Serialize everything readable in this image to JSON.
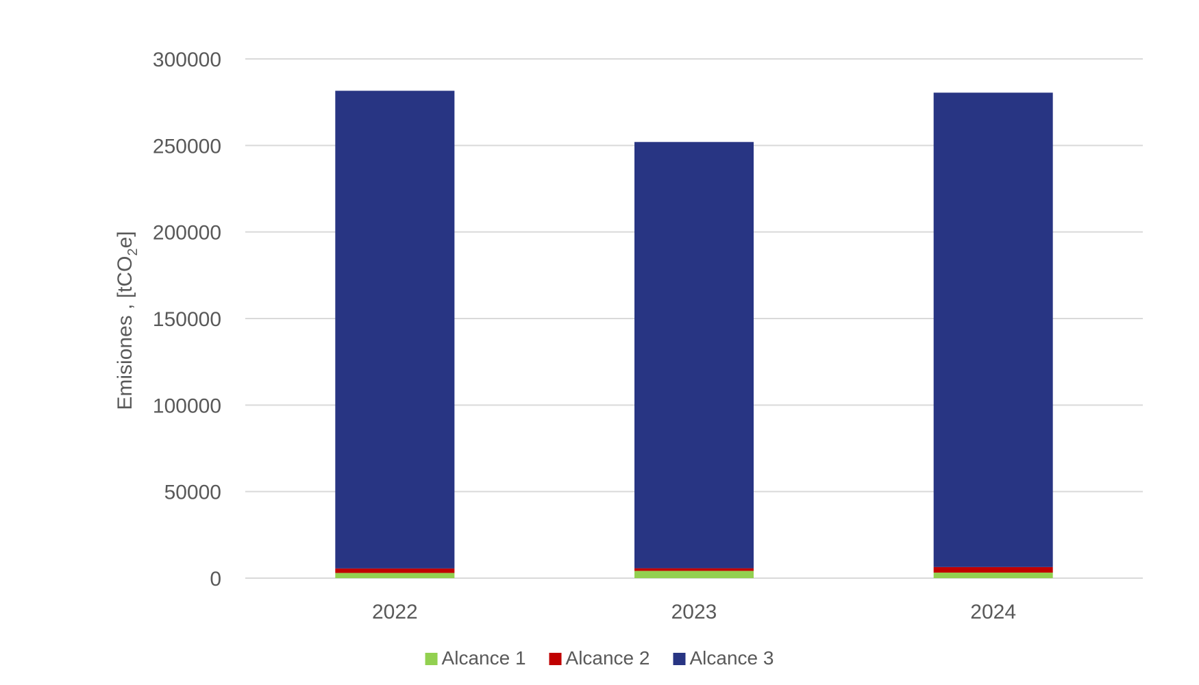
{
  "chart_data": {
    "type": "bar",
    "stacked": true,
    "categories": [
      "2022",
      "2023",
      "2024"
    ],
    "series": [
      {
        "name": "Alcance 1",
        "values": [
          3000,
          4200,
          3200
        ],
        "color": "#92d050"
      },
      {
        "name": "Alcance 2",
        "values": [
          2600,
          1500,
          3200
        ],
        "color": "#c00000"
      },
      {
        "name": "Alcance 3",
        "values": [
          276000,
          246300,
          274100
        ],
        "color": "#283583"
      }
    ],
    "ylabel": {
      "prefix": "Emisiones , [tCO",
      "sub": "2",
      "suffix": "e]"
    },
    "ylim": [
      0,
      300000
    ],
    "yticks": [
      0,
      50000,
      100000,
      150000,
      200000,
      250000,
      300000
    ],
    "grid": true,
    "legend": "bottom"
  }
}
